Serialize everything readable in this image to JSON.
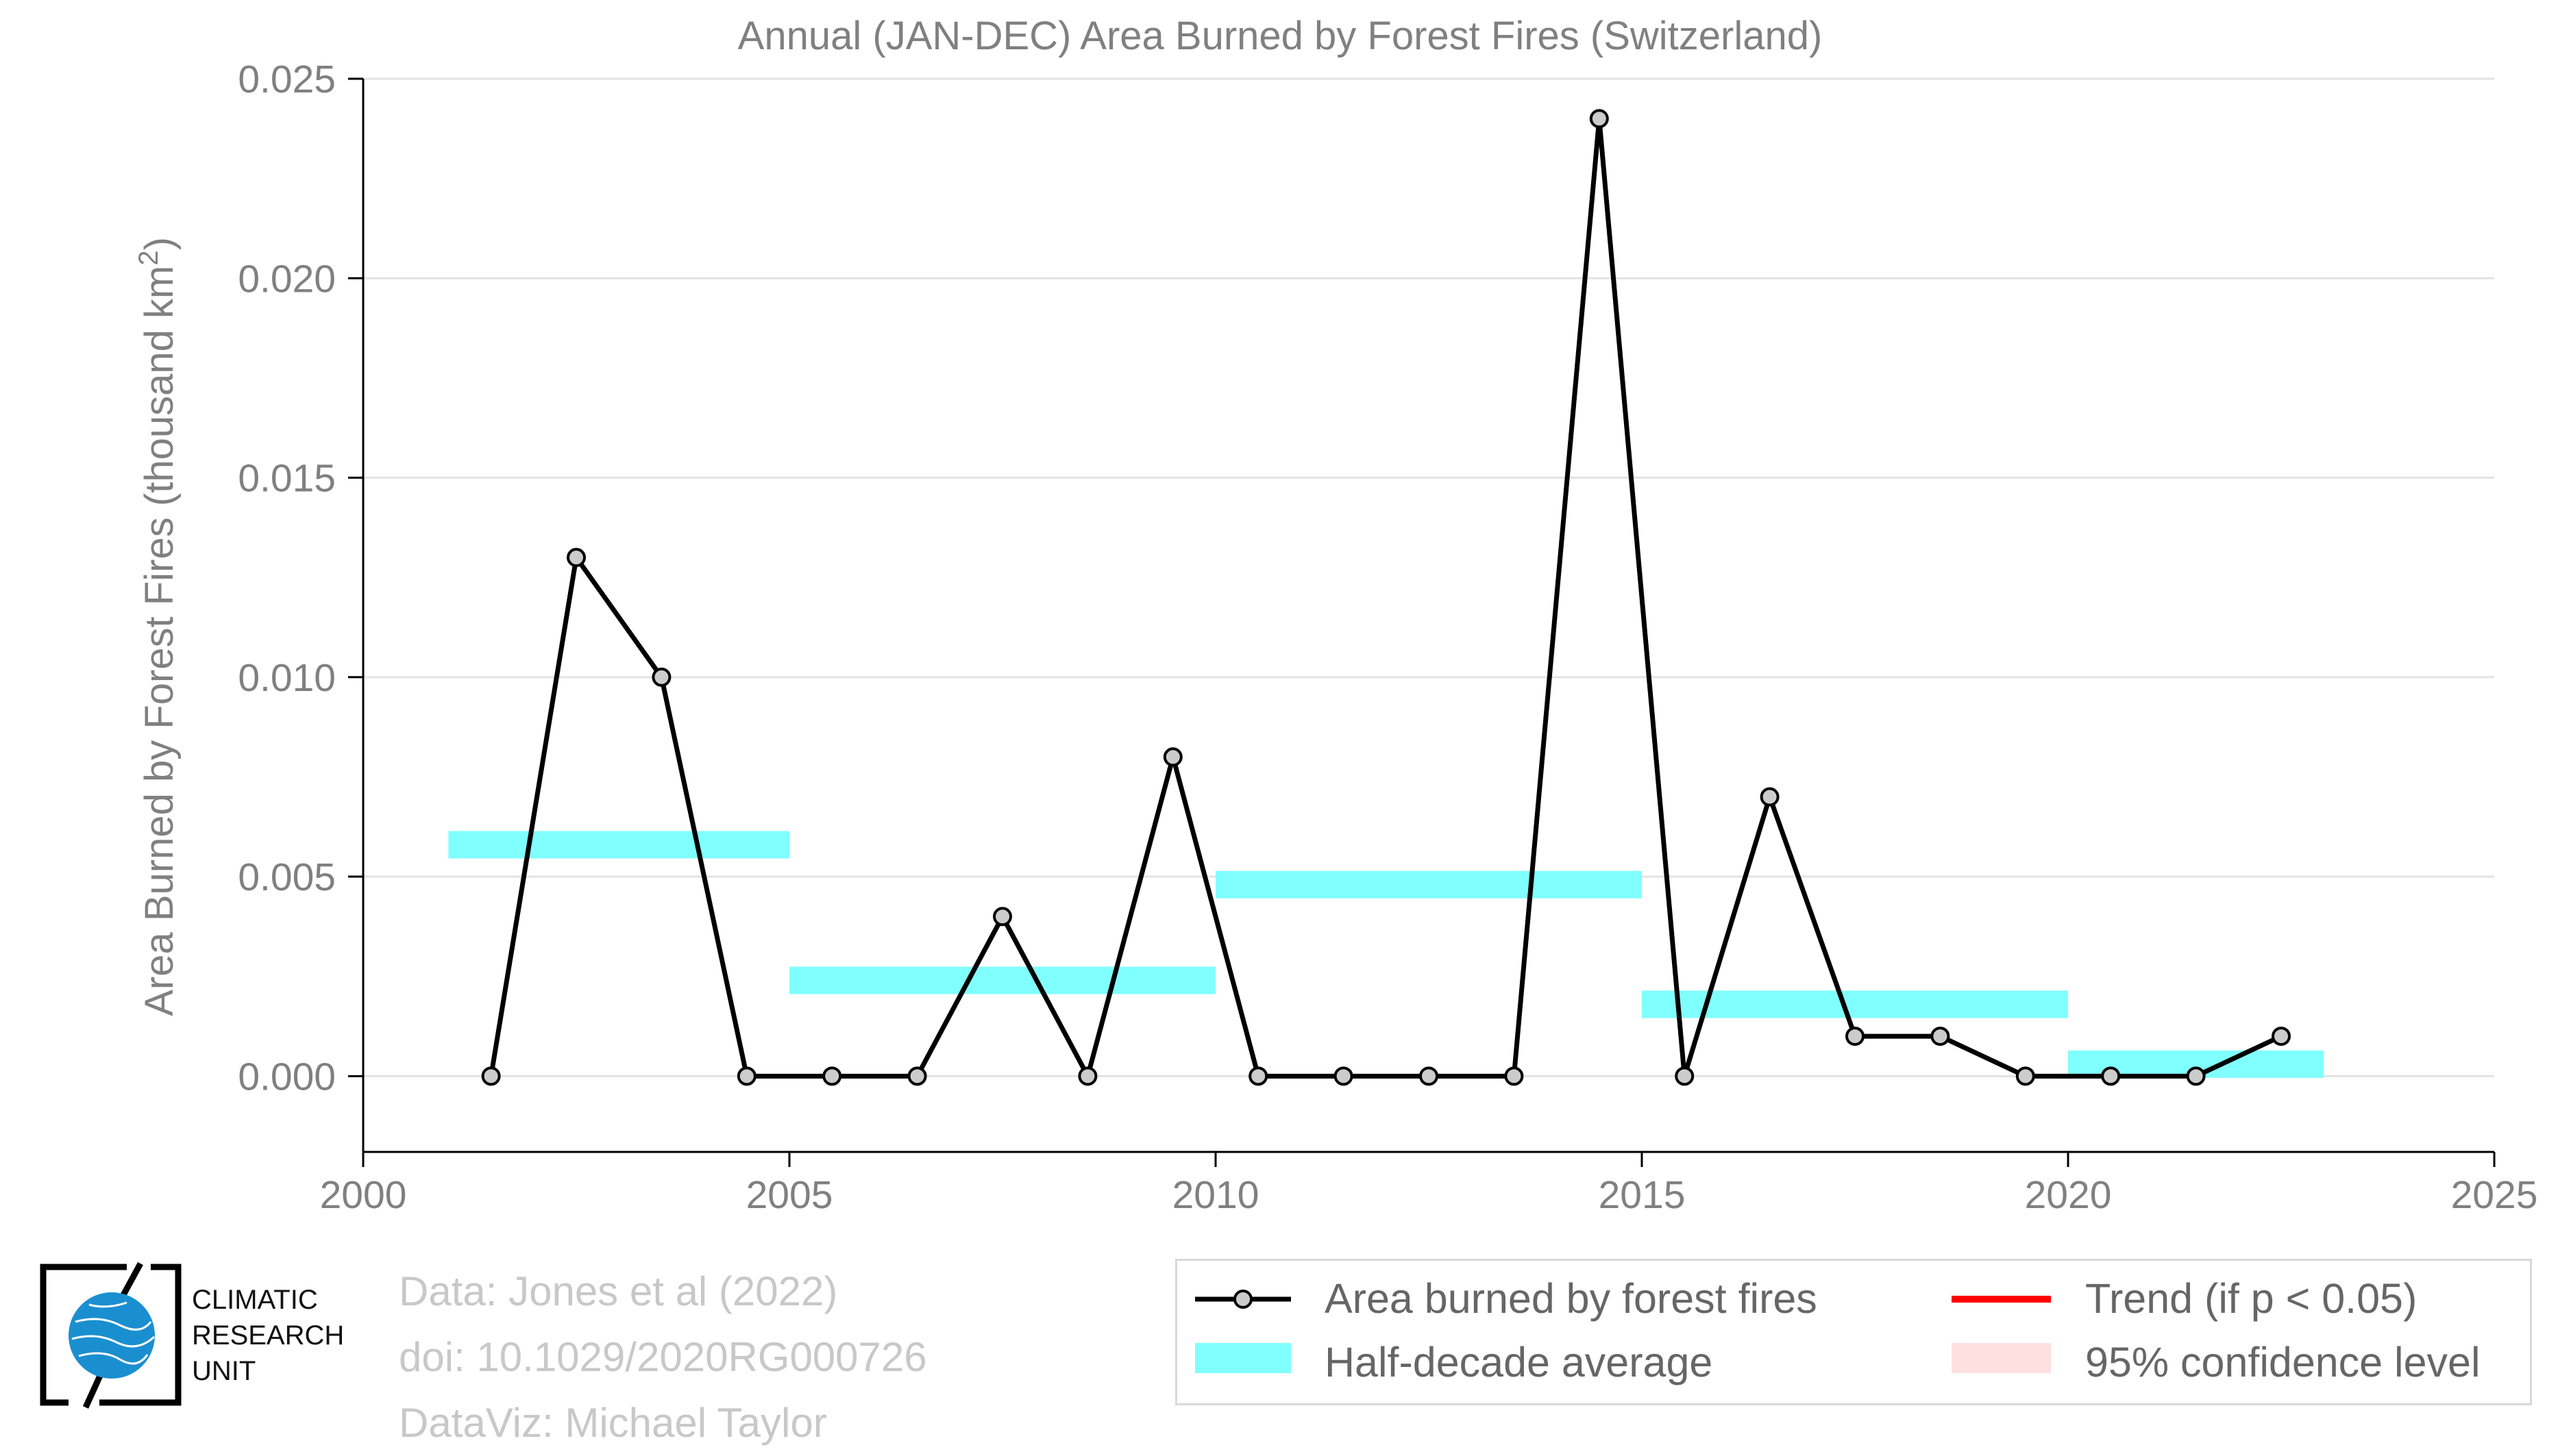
{
  "colors": {
    "line": "#000000",
    "marker_fill": "#cccccc",
    "half_decade": "#80ffff",
    "trend": "#ff0000",
    "confidence": "#ffe0e0",
    "text": "#808080",
    "credit_text": "#c8c8c8",
    "logo_blue": "#1a8fd0"
  },
  "chart_data": {
    "type": "line",
    "title": "Annual (JAN-DEC) Area Burned by Forest Fires (Switzerland)",
    "xlabel": "",
    "ylabel_prefix": "Area Burned by Forest Fires (thousand km",
    "ylabel_sup": "2",
    "ylabel_suffix": ")",
    "xlim": [
      2000,
      2025
    ],
    "ylim": [
      -0.0019,
      0.025
    ],
    "xticks": [
      2000,
      2005,
      2010,
      2015,
      2020,
      2025
    ],
    "xtick_labels": [
      "2000",
      "2005",
      "2010",
      "2015",
      "2020",
      "2025"
    ],
    "yticks": [
      0.0,
      0.005,
      0.01,
      0.015,
      0.02,
      0.025
    ],
    "ytick_labels": [
      "0.000",
      "0.005",
      "0.010",
      "0.015",
      "0.020",
      "0.025"
    ],
    "grid": "horizontal",
    "series": [
      {
        "name": "Area burned by forest fires",
        "x": [
          2001.5,
          2002.5,
          2003.5,
          2004.5,
          2005.5,
          2006.5,
          2007.5,
          2008.5,
          2009.5,
          2010.5,
          2011.5,
          2012.5,
          2013.5,
          2014.5,
          2015.5,
          2016.5,
          2017.5,
          2018.5,
          2019.5,
          2020.5,
          2021.5,
          2022.5
        ],
        "values": [
          0.0,
          0.013,
          0.01,
          0.0,
          0.0,
          0.0,
          0.004,
          0.0,
          0.008,
          0.0,
          0.0,
          0.0,
          0.0,
          0.024,
          0.0,
          0.007,
          0.001,
          0.001,
          0.0,
          0.0,
          0.0,
          0.001
        ]
      }
    ],
    "half_decade_average": [
      {
        "x_start": 2001,
        "x_end": 2005,
        "value": 0.0058
      },
      {
        "x_start": 2005,
        "x_end": 2010,
        "value": 0.0024
      },
      {
        "x_start": 2010,
        "x_end": 2015,
        "value": 0.0048
      },
      {
        "x_start": 2015,
        "x_end": 2020,
        "value": 0.0018
      },
      {
        "x_start": 2020,
        "x_end": 2023,
        "value": 0.0003
      }
    ],
    "legend": {
      "placement": "bottom-right",
      "entries": [
        "Area burned by forest fires",
        "Trend (if p < 0.05)",
        "Half-decade average",
        "95% confidence level"
      ]
    }
  },
  "credits": {
    "line1": "Data: Jones et al (2022)",
    "line2": "doi: 10.1029/2020RG000726",
    "line3": "DataViz: Michael Taylor"
  },
  "logo": {
    "line1": "CLIMATIC",
    "line2": "RESEARCH",
    "line3": "UNIT"
  }
}
